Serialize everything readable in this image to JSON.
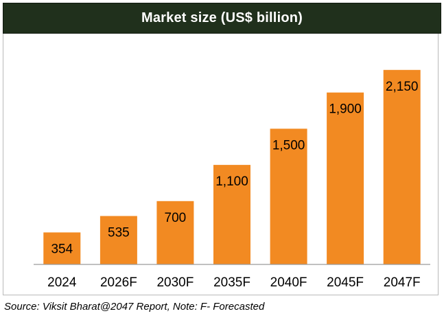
{
  "colors": {
    "title_bg": "#20301c",
    "bar_fill": "#f28a22",
    "axis": "#9a9a9a",
    "text": "#000000"
  },
  "caption": "Source: Viksit Bharat@2047 Report, Note: F- Forecasted",
  "chart_data": {
    "type": "bar",
    "title": "Market size (US$ billion)",
    "categories": [
      "2024",
      "2026F",
      "2030F",
      "2035F",
      "2040F",
      "2045F",
      "2047F"
    ],
    "values": [
      354,
      535,
      700,
      1100,
      1500,
      1900,
      2150
    ],
    "value_labels": [
      "354",
      "535",
      "700",
      "1,100",
      "1,500",
      "1,900",
      "2,150"
    ],
    "xlabel": "",
    "ylabel": "",
    "ylim": [
      0,
      2300
    ],
    "grid": false,
    "legend": "none"
  }
}
